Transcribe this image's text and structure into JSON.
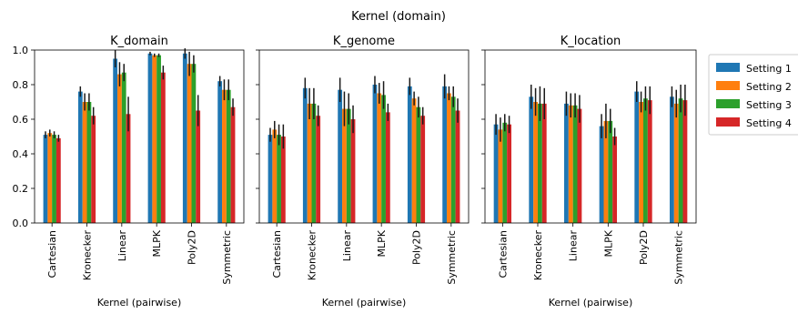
{
  "figure_title": "Kernel (domain)",
  "legend": [
    "Setting 1",
    "Setting 2",
    "Setting 3",
    "Setting 4"
  ],
  "colors": [
    "#1f77b4",
    "#ff7f0e",
    "#2ca02c",
    "#d62728"
  ],
  "chart_data": [
    {
      "type": "bar",
      "title": "K_domain",
      "xlabel": "Kernel (pairwise)",
      "ylabel": "",
      "ylim": [
        0,
        1.0
      ],
      "yticks": [
        "0.0",
        "0.2",
        "0.4",
        "0.6",
        "0.8",
        "1.0"
      ],
      "categories": [
        "Cartesian",
        "Kronecker",
        "Linear",
        "MLPK",
        "Poly2D",
        "Symmetric"
      ],
      "series": [
        {
          "name": "Setting 1",
          "values": [
            0.51,
            0.76,
            0.95,
            0.98,
            0.98,
            0.82
          ],
          "errors": [
            0.02,
            0.03,
            0.05,
            0.01,
            0.03,
            0.03
          ]
        },
        {
          "name": "Setting 2",
          "values": [
            0.52,
            0.7,
            0.86,
            0.97,
            0.92,
            0.77
          ],
          "errors": [
            0.02,
            0.05,
            0.07,
            0.01,
            0.07,
            0.06
          ]
        },
        {
          "name": "Setting 3",
          "values": [
            0.51,
            0.7,
            0.87,
            0.97,
            0.92,
            0.77
          ],
          "errors": [
            0.02,
            0.05,
            0.05,
            0.01,
            0.05,
            0.06
          ]
        },
        {
          "name": "Setting 4",
          "values": [
            0.49,
            0.62,
            0.63,
            0.87,
            0.65,
            0.67
          ],
          "errors": [
            0.02,
            0.05,
            0.1,
            0.04,
            0.09,
            0.05
          ]
        }
      ]
    },
    {
      "type": "bar",
      "title": "K_genome",
      "xlabel": "Kernel (pairwise)",
      "ylabel": "",
      "ylim": [
        0,
        1.0
      ],
      "categories": [
        "Cartesian",
        "Kronecker",
        "Linear",
        "MLPK",
        "Poly2D",
        "Symmetric"
      ],
      "series": [
        {
          "name": "Setting 1",
          "values": [
            0.51,
            0.78,
            0.77,
            0.8,
            0.79,
            0.79
          ],
          "errors": [
            0.04,
            0.06,
            0.07,
            0.05,
            0.05,
            0.07
          ]
        },
        {
          "name": "Setting 2",
          "values": [
            0.54,
            0.69,
            0.66,
            0.75,
            0.72,
            0.75
          ],
          "errors": [
            0.05,
            0.09,
            0.1,
            0.06,
            0.04,
            0.04
          ]
        },
        {
          "name": "Setting 3",
          "values": [
            0.51,
            0.69,
            0.66,
            0.74,
            0.67,
            0.73
          ],
          "errors": [
            0.06,
            0.09,
            0.09,
            0.08,
            0.06,
            0.06
          ]
        },
        {
          "name": "Setting 4",
          "values": [
            0.5,
            0.62,
            0.6,
            0.64,
            0.62,
            0.65
          ],
          "errors": [
            0.07,
            0.06,
            0.08,
            0.05,
            0.05,
            0.07
          ]
        }
      ]
    },
    {
      "type": "bar",
      "title": "K_location",
      "xlabel": "Kernel (pairwise)",
      "ylabel": "",
      "ylim": [
        0,
        1.0
      ],
      "categories": [
        "Cartesian",
        "Kronecker",
        "Linear",
        "MLPK",
        "Poly2D",
        "Symmetric"
      ],
      "series": [
        {
          "name": "Setting 1",
          "values": [
            0.57,
            0.73,
            0.69,
            0.56,
            0.76,
            0.73
          ],
          "errors": [
            0.06,
            0.07,
            0.07,
            0.07,
            0.06,
            0.06
          ]
        },
        {
          "name": "Setting 2",
          "values": [
            0.54,
            0.7,
            0.68,
            0.59,
            0.7,
            0.69
          ],
          "errors": [
            0.07,
            0.08,
            0.07,
            0.1,
            0.06,
            0.08
          ]
        },
        {
          "name": "Setting 3",
          "values": [
            0.58,
            0.69,
            0.68,
            0.59,
            0.72,
            0.72
          ],
          "errors": [
            0.05,
            0.1,
            0.07,
            0.07,
            0.07,
            0.08
          ]
        },
        {
          "name": "Setting 4",
          "values": [
            0.57,
            0.69,
            0.66,
            0.5,
            0.71,
            0.71
          ],
          "errors": [
            0.05,
            0.09,
            0.08,
            0.05,
            0.08,
            0.09
          ]
        }
      ]
    }
  ]
}
